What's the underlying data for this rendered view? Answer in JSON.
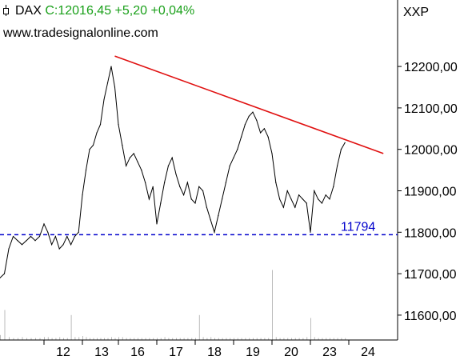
{
  "header": {
    "symbol": "DAX",
    "quote": "C:12016,45 +5,20 +0,04%",
    "website": "www.tradesignalonline.com",
    "instrument_label": "XXP",
    "quote_color": "#1aa01a"
  },
  "chart_data": {
    "type": "line",
    "title": "",
    "xlabel": "",
    "ylabel": "",
    "ylim": [
      11540,
      12260
    ],
    "x_tick_labels": [
      "12",
      "13",
      "16",
      "17",
      "18",
      "19",
      "20",
      "23",
      "24"
    ],
    "y_ticks": [
      11600,
      11700,
      11800,
      11900,
      12000,
      12100,
      12200
    ],
    "y_tick_labels": [
      "11600,00",
      "11700,00",
      "11800,00",
      "11900,00",
      "12000,00",
      "12100,00",
      "12200,00"
    ],
    "grid": false,
    "series": [
      {
        "color": "#000000",
        "points": [
          [
            0.0,
            11690
          ],
          [
            0.1,
            11700
          ],
          [
            0.2,
            11760
          ],
          [
            0.3,
            11790
          ],
          [
            0.4,
            11780
          ],
          [
            0.5,
            11770
          ],
          [
            0.6,
            11780
          ],
          [
            0.7,
            11790
          ],
          [
            0.8,
            11780
          ],
          [
            0.9,
            11790
          ],
          [
            1.0,
            11820
          ],
          [
            1.1,
            11800
          ],
          [
            1.2,
            11770
          ],
          [
            1.3,
            11790
          ],
          [
            1.4,
            11760
          ],
          [
            1.5,
            11770
          ],
          [
            1.6,
            11790
          ],
          [
            1.7,
            11770
          ],
          [
            1.8,
            11790
          ],
          [
            1.9,
            11800
          ],
          [
            2.0,
            11890
          ],
          [
            2.1,
            11950
          ],
          [
            2.2,
            12000
          ],
          [
            2.3,
            12010
          ],
          [
            2.4,
            12040
          ],
          [
            2.5,
            12060
          ],
          [
            2.6,
            12120
          ],
          [
            2.7,
            12160
          ],
          [
            2.8,
            12200
          ],
          [
            2.9,
            12150
          ],
          [
            3.0,
            12060
          ],
          [
            3.1,
            12010
          ],
          [
            3.2,
            11960
          ],
          [
            3.3,
            11980
          ],
          [
            3.4,
            11990
          ],
          [
            3.5,
            11970
          ],
          [
            3.6,
            11950
          ],
          [
            3.7,
            11920
          ],
          [
            3.8,
            11880
          ],
          [
            3.9,
            11910
          ],
          [
            4.0,
            11820
          ],
          [
            4.1,
            11870
          ],
          [
            4.2,
            11920
          ],
          [
            4.3,
            11960
          ],
          [
            4.4,
            11980
          ],
          [
            4.5,
            11940
          ],
          [
            4.6,
            11910
          ],
          [
            4.7,
            11890
          ],
          [
            4.8,
            11920
          ],
          [
            4.9,
            11880
          ],
          [
            5.0,
            11870
          ],
          [
            5.1,
            11910
          ],
          [
            5.2,
            11900
          ],
          [
            5.3,
            11860
          ],
          [
            5.4,
            11830
          ],
          [
            5.5,
            11800
          ],
          [
            5.6,
            11840
          ],
          [
            5.7,
            11880
          ],
          [
            5.8,
            11920
          ],
          [
            5.9,
            11960
          ],
          [
            6.0,
            11980
          ],
          [
            6.1,
            12000
          ],
          [
            6.2,
            12030
          ],
          [
            6.3,
            12060
          ],
          [
            6.4,
            12080
          ],
          [
            6.5,
            12090
          ],
          [
            6.6,
            12070
          ],
          [
            6.7,
            12040
          ],
          [
            6.8,
            12050
          ],
          [
            6.9,
            12030
          ],
          [
            7.0,
            11990
          ],
          [
            7.1,
            11920
          ],
          [
            7.2,
            11880
          ],
          [
            7.3,
            11860
          ],
          [
            7.4,
            11900
          ],
          [
            7.5,
            11880
          ],
          [
            7.6,
            11860
          ],
          [
            7.7,
            11890
          ],
          [
            7.8,
            11880
          ],
          [
            7.9,
            11870
          ],
          [
            8.0,
            11800
          ],
          [
            8.1,
            11900
          ],
          [
            8.2,
            11880
          ],
          [
            8.3,
            11870
          ],
          [
            8.4,
            11890
          ],
          [
            8.5,
            11880
          ],
          [
            8.6,
            11910
          ],
          [
            8.7,
            11960
          ],
          [
            8.8,
            12000
          ],
          [
            8.9,
            12016
          ]
        ]
      }
    ],
    "trendline": {
      "color": "#e01010",
      "from": [
        2.9,
        12225
      ],
      "to": [
        9.9,
        11990
      ]
    },
    "support": {
      "value": 11794,
      "label": "11794",
      "color": "#0000cc",
      "style": "dashed"
    },
    "volume": {
      "color": "#bbbbbb",
      "values": [
        5,
        30,
        3,
        2,
        2,
        3,
        2,
        2,
        2,
        2,
        3,
        3,
        2,
        2,
        3,
        2,
        2,
        25,
        3,
        3,
        4,
        3,
        2,
        2,
        2,
        2,
        2,
        2,
        3,
        2,
        3,
        3,
        2,
        2,
        2,
        2,
        2,
        2,
        2,
        2,
        2,
        2,
        3,
        2,
        2,
        2,
        2,
        2,
        2,
        2,
        2,
        25,
        3,
        2,
        3,
        2,
        2,
        2,
        2,
        2,
        2,
        2,
        2,
        2,
        2,
        2,
        2,
        2,
        2,
        2,
        70,
        3,
        2,
        2,
        2,
        2,
        2,
        2,
        2,
        3,
        22,
        3,
        2,
        2,
        2,
        2,
        2,
        2,
        2,
        2
      ]
    }
  }
}
